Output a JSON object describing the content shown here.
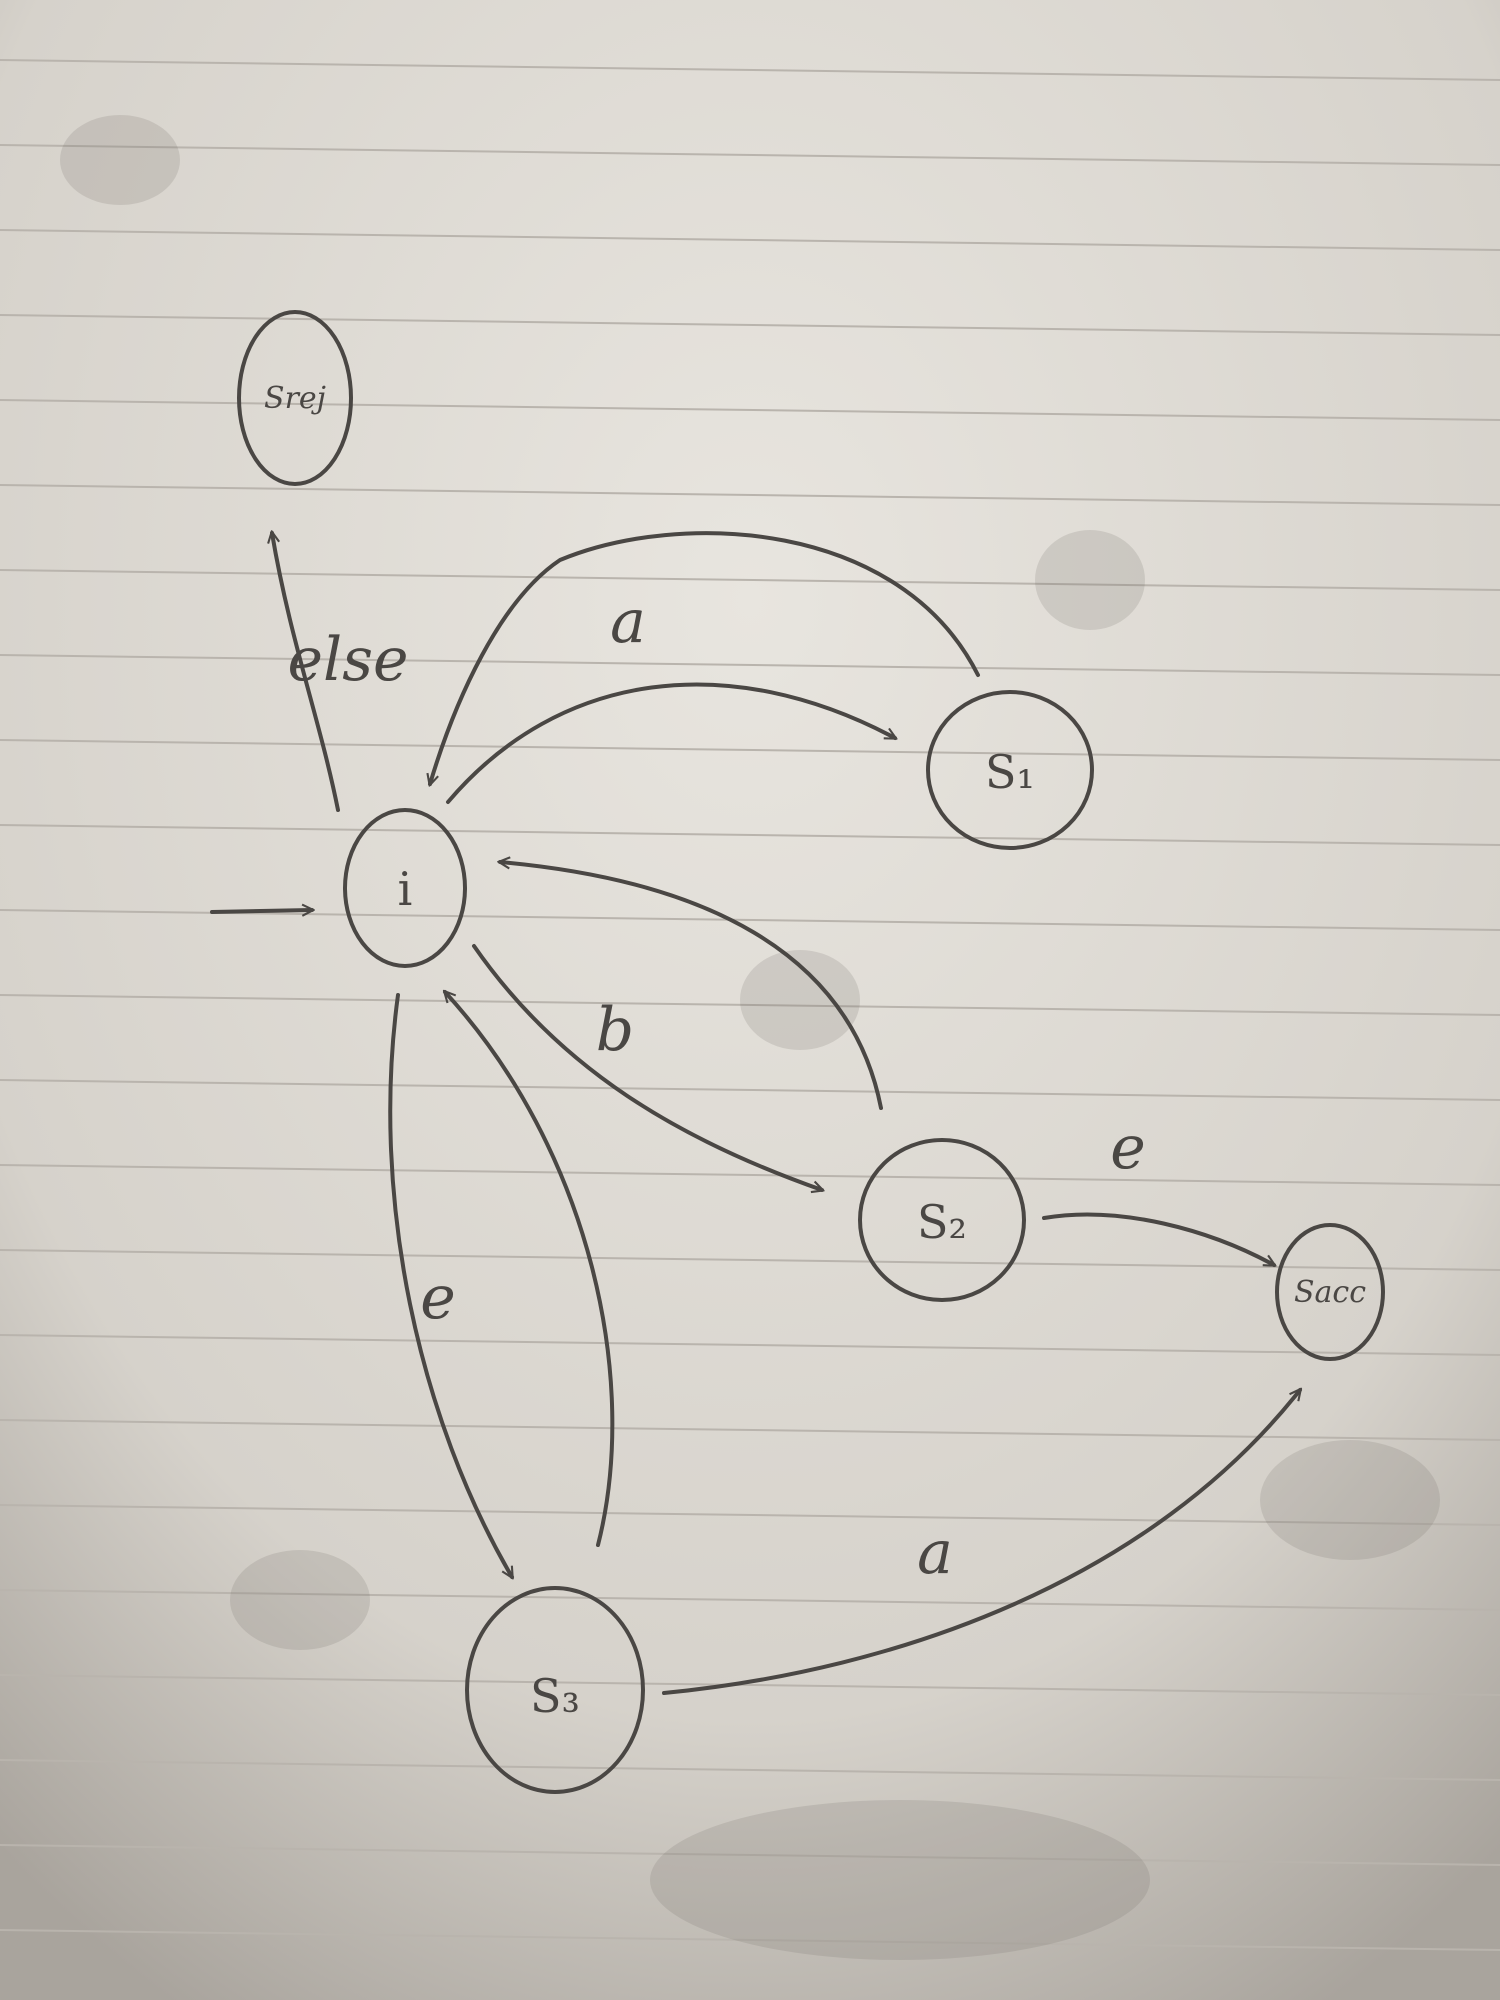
{
  "diagram": {
    "states": {
      "start": "i",
      "s1": "S₁",
      "s2": "S₂",
      "s3": "S₃",
      "reject": "Srej",
      "accept": "Sacc"
    },
    "transitions": {
      "i_to_reject": "else",
      "i_to_s1": "a",
      "i_to_s2": "b",
      "i_to_s3": "e",
      "s2_to_accept": "e",
      "s3_to_accept": "a"
    }
  },
  "colors": {
    "paper": "#e6e3dd",
    "ink": "#4a4744"
  }
}
